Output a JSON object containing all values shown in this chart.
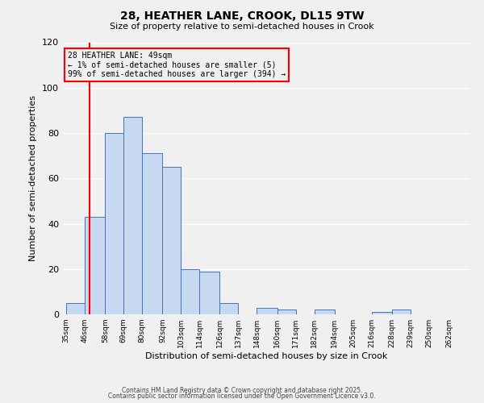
{
  "title": "28, HEATHER LANE, CROOK, DL15 9TW",
  "subtitle": "Size of property relative to semi-detached houses in Crook",
  "xlabel": "Distribution of semi-detached houses by size in Crook",
  "ylabel": "Number of semi-detached properties",
  "bin_labels": [
    "35sqm",
    "46sqm",
    "58sqm",
    "69sqm",
    "80sqm",
    "92sqm",
    "103sqm",
    "114sqm",
    "126sqm",
    "137sqm",
    "148sqm",
    "160sqm",
    "171sqm",
    "182sqm",
    "194sqm",
    "205sqm",
    "216sqm",
    "228sqm",
    "239sqm",
    "250sqm",
    "262sqm"
  ],
  "bar_heights": [
    5,
    43,
    80,
    87,
    71,
    65,
    20,
    19,
    5,
    0,
    3,
    2,
    0,
    2,
    0,
    0,
    1,
    2,
    0,
    0,
    0
  ],
  "bin_edges": [
    35,
    46,
    58,
    69,
    80,
    92,
    103,
    114,
    126,
    137,
    148,
    160,
    171,
    182,
    194,
    205,
    216,
    228,
    239,
    250,
    262
  ],
  "bar_color": "#c6d9f0",
  "bar_edge_color": "#4472c4",
  "vline_x": 49,
  "vline_color": "#ff0000",
  "annotation_line1": "28 HEATHER LANE: 49sqm",
  "annotation_line2": "← 1% of semi-detached houses are smaller (5)",
  "annotation_line3": "99% of semi-detached houses are larger (394) →",
  "annotation_box_color": "#ff0000",
  "ylim": [
    0,
    120
  ],
  "yticks": [
    0,
    20,
    40,
    60,
    80,
    100,
    120
  ],
  "background_color": "#f0f0f0",
  "grid_color": "#ffffff",
  "footer_line1": "Contains HM Land Registry data © Crown copyright and database right 2025.",
  "footer_line2": "Contains public sector information licensed under the Open Government Licence v3.0."
}
